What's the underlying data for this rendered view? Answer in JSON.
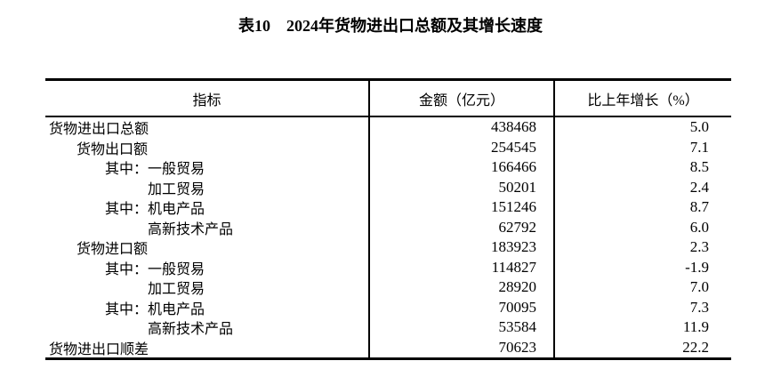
{
  "page": {
    "background_color": "#ffffff",
    "text_color": "#000000",
    "border_color": "#000000"
  },
  "title": {
    "prefix": "表10",
    "main": "2024年货物进出口总额及其增长速度"
  },
  "table": {
    "headers": {
      "indicator": "指标",
      "amount": "金额（亿元）",
      "growth": "比上年增长（%）"
    },
    "rows": [
      {
        "indicator": "货物进出口总额",
        "indent": 0,
        "amount": "438468",
        "growth": "5.0"
      },
      {
        "indicator": "货物出口额",
        "indent": 1,
        "amount": "254545",
        "growth": "7.1"
      },
      {
        "indicator": "其中：一般贸易",
        "indent": 2,
        "amount": "166466",
        "growth": "8.5"
      },
      {
        "indicator": "加工贸易",
        "indent": 3,
        "amount": "50201",
        "growth": "2.4"
      },
      {
        "indicator": "其中：机电产品",
        "indent": 2,
        "amount": "151246",
        "growth": "8.7"
      },
      {
        "indicator": "高新技术产品",
        "indent": 3,
        "amount": "62792",
        "growth": "6.0"
      },
      {
        "indicator": "货物进口额",
        "indent": 1,
        "amount": "183923",
        "growth": "2.3"
      },
      {
        "indicator": "其中：一般贸易",
        "indent": 2,
        "amount": "114827",
        "growth": "-1.9"
      },
      {
        "indicator": "加工贸易",
        "indent": 3,
        "amount": "28920",
        "growth": "7.0"
      },
      {
        "indicator": "其中：机电产品",
        "indent": 2,
        "amount": "70095",
        "growth": "7.3"
      },
      {
        "indicator": "高新技术产品",
        "indent": 3,
        "amount": "53584",
        "growth": "11.9"
      },
      {
        "indicator": "货物进出口顺差",
        "indent": 0,
        "amount": "70623",
        "growth": "22.2"
      }
    ]
  }
}
